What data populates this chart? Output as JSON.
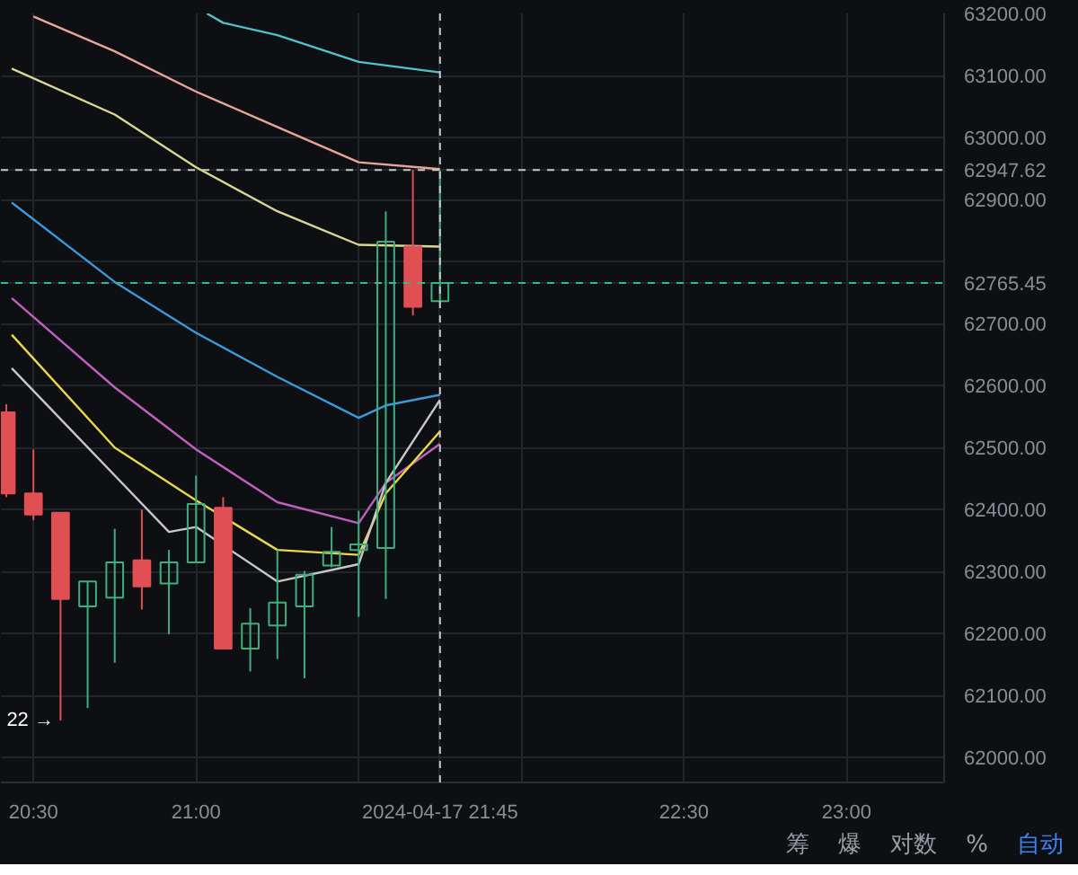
{
  "chart_data": {
    "type": "candlestick",
    "x": [
      "2024-04-17T20:25",
      "2024-04-17T20:30",
      "2024-04-17T20:35",
      "2024-04-17T20:40",
      "2024-04-17T20:45",
      "2024-04-17T20:50",
      "2024-04-17T20:55",
      "2024-04-17T21:00",
      "2024-04-17T21:05",
      "2024-04-17T21:10",
      "2024-04-17T21:15",
      "2024-04-17T21:20",
      "2024-04-17T21:25",
      "2024-04-17T21:30",
      "2024-04-17T21:35",
      "2024-04-17T21:40",
      "2024-04-17T21:45"
    ],
    "ohlc": [
      [
        62557,
        62570,
        62420,
        62426
      ],
      [
        62426,
        62497,
        62383,
        62392
      ],
      [
        62395,
        62395,
        62060,
        62256
      ],
      [
        62244,
        62284,
        62080,
        62284
      ],
      [
        62258,
        62369,
        62153,
        62315
      ],
      [
        62318,
        62400,
        62239,
        62276
      ],
      [
        62281,
        62335,
        62199,
        62315
      ],
      [
        62315,
        62455,
        62315,
        62409
      ],
      [
        62403,
        62420,
        62176,
        62176
      ],
      [
        62176,
        62241,
        62139,
        62216
      ],
      [
        62213,
        62335,
        62159,
        62250
      ],
      [
        62244,
        62301,
        62128,
        62295
      ],
      [
        62310,
        62372,
        62307,
        62332
      ],
      [
        62335,
        62398,
        62227,
        62344
      ],
      [
        62338,
        62881,
        62256,
        62832
      ],
      [
        62824,
        62947.62,
        62713,
        62727
      ],
      [
        62736,
        62947.62,
        62736,
        62765.45
      ]
    ],
    "colors": [
      "#e04f54",
      "#e04f54",
      "#e04f54",
      "#3fae7f",
      "#3fae7f",
      "#e04f54",
      "#3fae7f",
      "#3fae7f",
      "#e04f54",
      "#3fae7f",
      "#3fae7f",
      "#3fae7f",
      "#3fae7f",
      "#3fae7f",
      "#3fae7f",
      "#e04f54",
      "#3fae7f"
    ],
    "series": [
      {
        "type": "line",
        "color": "#4fc3c8",
        "x": [
          "2024-04-17T21:02",
          "2024-04-17T21:05",
          "2024-04-17T21:15",
          "2024-04-17T21:30",
          "2024-04-17T21:45"
        ],
        "values": [
          63200,
          63185,
          63165,
          63122,
          63105
        ]
      },
      {
        "type": "line",
        "color": "#e8a59a",
        "x": [
          "2024-04-17T20:30",
          "2024-04-17T20:45",
          "2024-04-17T21:00",
          "2024-04-17T21:15",
          "2024-04-17T21:30",
          "2024-04-17T21:45"
        ],
        "values": [
          63195,
          63139,
          63074,
          63017,
          62960,
          62949
        ]
      },
      {
        "type": "line",
        "color": "#d8d890",
        "x": [
          "2024-04-17T20:26",
          "2024-04-17T20:45",
          "2024-04-17T21:00",
          "2024-04-17T21:15",
          "2024-04-17T21:30",
          "2024-04-17T21:45"
        ],
        "values": [
          63111,
          63037,
          62952,
          62881,
          62827,
          62824
        ]
      },
      {
        "type": "line",
        "color": "#3a9ad9",
        "x": [
          "2024-04-17T20:26",
          "2024-04-17T20:45",
          "2024-04-17T21:00",
          "2024-04-17T21:15",
          "2024-04-17T21:30",
          "2024-04-17T21:35",
          "2024-04-17T21:45"
        ],
        "values": [
          62895,
          62767,
          62685,
          62614,
          62548,
          62568,
          62585
        ]
      },
      {
        "type": "line",
        "color": "#c060c0",
        "x": [
          "2024-04-17T20:26",
          "2024-04-17T20:45",
          "2024-04-17T21:00",
          "2024-04-17T21:15",
          "2024-04-17T21:30",
          "2024-04-17T21:35",
          "2024-04-17T21:45"
        ],
        "values": [
          62741,
          62597,
          62497,
          62412,
          62378,
          62443,
          62506
        ]
      },
      {
        "type": "line",
        "color": "#e8d84a",
        "x": [
          "2024-04-17T20:26",
          "2024-04-17T20:45",
          "2024-04-17T21:00",
          "2024-04-17T21:15",
          "2024-04-17T21:30",
          "2024-04-17T21:35",
          "2024-04-17T21:45"
        ],
        "values": [
          62682,
          62500,
          62415,
          62335,
          62327,
          62426,
          62526
        ]
      },
      {
        "type": "line",
        "color": "#c8c8c8",
        "x": [
          "2024-04-17T20:26",
          "2024-04-17T20:45",
          "2024-04-17T20:55",
          "2024-04-17T21:00",
          "2024-04-17T21:15",
          "2024-04-17T21:30",
          "2024-04-17T21:35",
          "2024-04-17T21:45"
        ],
        "values": [
          62628,
          62455,
          62364,
          62372,
          62284,
          62312,
          62443,
          62577
        ]
      }
    ],
    "xlim": [
      "2024-04-17T20:24",
      "2024-04-17T23:18"
    ],
    "xticks": [
      {
        "value": "2024-04-17T20:30",
        "label": "20:30"
      },
      {
        "value": "2024-04-17T21:00",
        "label": "21:00"
      },
      {
        "value": "2024-04-17T21:30",
        "label": null
      },
      {
        "value": "2024-04-17T22:00",
        "label": null
      },
      {
        "value": "2024-04-17T22:30",
        "label": "22:30"
      },
      {
        "value": "2024-04-17T23:00",
        "label": "23:00"
      }
    ],
    "ylim": [
      61960,
      63200
    ],
    "yticks": [
      {
        "value": 62000,
        "label": "62000.00"
      },
      {
        "value": 62100,
        "label": "62100.00"
      },
      {
        "value": 62200,
        "label": "62200.00"
      },
      {
        "value": 62300,
        "label": "62300.00"
      },
      {
        "value": 62400,
        "label": "62400.00"
      },
      {
        "value": 62500,
        "label": "62500.00"
      },
      {
        "value": 62600,
        "label": "62600.00"
      },
      {
        "value": 62700,
        "label": "62700.00"
      },
      {
        "value": 62800,
        "label": null
      },
      {
        "value": 62900,
        "label": "62900.00"
      },
      {
        "value": 63000,
        "label": "63000.00"
      },
      {
        "value": 63100,
        "label": "63100.00"
      },
      {
        "value": 63200,
        "label": "63200.00"
      }
    ],
    "ref_lines": [
      {
        "axis": "x",
        "value": "2024-04-17T21:45",
        "label": "2024-04-17 21:45",
        "color": "#c8c8c8",
        "line_style": "dashed"
      },
      {
        "axis": "y",
        "value": 62947.62,
        "label": "62947.62",
        "color": "#c8c8c8",
        "line_style": "dashed"
      },
      {
        "axis": "y",
        "value": 62765.45,
        "label": "62765.45",
        "color": "#2ebd85",
        "line_style": "dashed"
      }
    ],
    "annotations": [
      {
        "text": "22 →",
        "x": "2024-04-17T20:35",
        "y": 62060
      },
      "筹",
      "爆",
      "对数",
      "%",
      "自动"
    ],
    "grid": true
  }
}
